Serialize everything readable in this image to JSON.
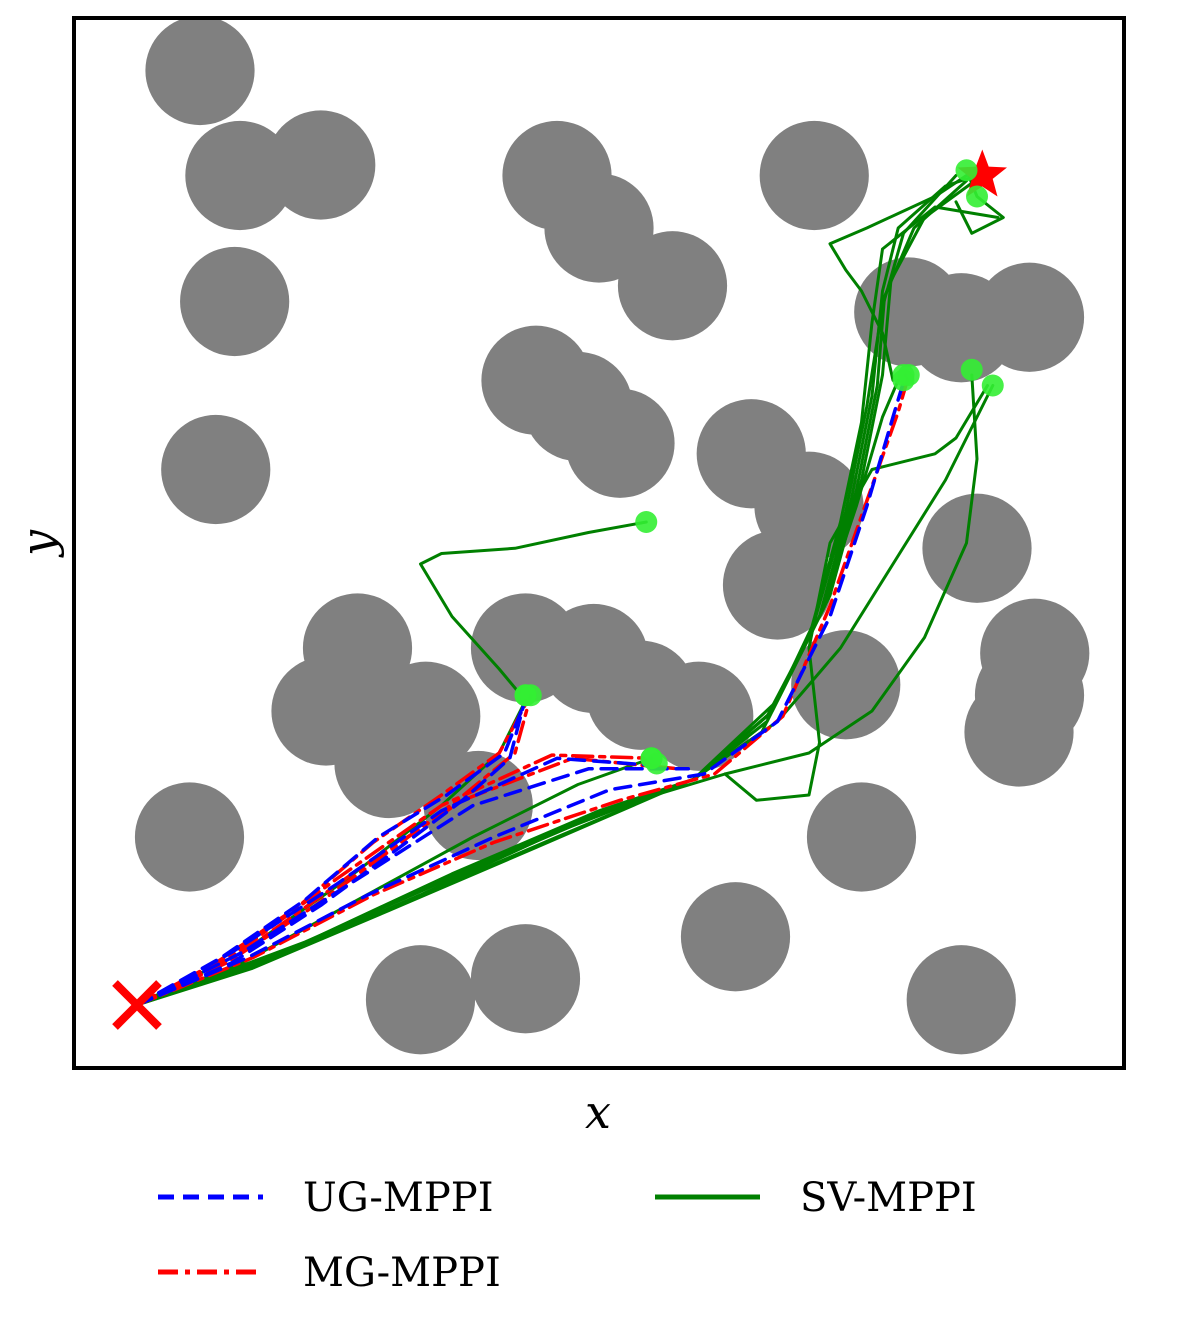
{
  "chart_data": {
    "type": "scatter",
    "title": "",
    "xlabel": "x",
    "ylabel": "y",
    "xlim": [
      0,
      10
    ],
    "ylim": [
      0,
      10
    ],
    "grid": false,
    "legend_position": "bottom",
    "colors": {
      "obstacle": "#808080",
      "UG-MPPI": "#0000ff",
      "MG-MPPI": "#ff0000",
      "SV-MPPI": "#008000",
      "endpoint": "#33ee33",
      "start_goal": "#ff0000"
    },
    "start": [
      0.6,
      0.6
    ],
    "goal": [
      8.65,
      8.5
    ],
    "obstacles": [
      [
        1.2,
        9.5
      ],
      [
        1.58,
        8.5
      ],
      [
        2.35,
        8.6
      ],
      [
        1.53,
        7.3
      ],
      [
        1.35,
        5.7
      ],
      [
        4.6,
        8.5
      ],
      [
        5.0,
        8.0
      ],
      [
        5.7,
        7.45
      ],
      [
        4.4,
        6.55
      ],
      [
        4.8,
        6.3
      ],
      [
        5.2,
        5.95
      ],
      [
        7.05,
        8.5
      ],
      [
        6.45,
        5.85
      ],
      [
        7.0,
        5.35
      ],
      [
        6.7,
        4.6
      ],
      [
        7.95,
        7.2
      ],
      [
        8.45,
        7.05
      ],
      [
        9.1,
        7.15
      ],
      [
        8.6,
        4.95
      ],
      [
        9.15,
        3.95
      ],
      [
        9.1,
        3.55
      ],
      [
        9.0,
        3.2
      ],
      [
        2.7,
        4.0
      ],
      [
        2.4,
        3.4
      ],
      [
        3.35,
        3.35
      ],
      [
        3.0,
        2.9
      ],
      [
        3.85,
        2.5
      ],
      [
        4.3,
        4.0
      ],
      [
        4.95,
        3.9
      ],
      [
        5.4,
        3.55
      ],
      [
        5.95,
        3.35
      ],
      [
        7.35,
        3.65
      ],
      [
        7.5,
        2.2
      ],
      [
        6.3,
        1.25
      ],
      [
        4.3,
        0.85
      ],
      [
        3.3,
        0.65
      ],
      [
        1.1,
        2.2
      ],
      [
        8.45,
        0.65
      ]
    ],
    "obstacle_radius": 0.52,
    "series": [
      {
        "name": "UG-MPPI",
        "style": "dashed",
        "endpoints": [
          [
            4.3,
            3.55
          ],
          [
            5.55,
            2.9
          ],
          [
            7.9,
            6.55
          ]
        ],
        "paths": [
          [
            [
              0.6,
              0.6
            ],
            [
              1.4,
              1.05
            ],
            [
              2.2,
              1.6
            ],
            [
              2.9,
              2.2
            ],
            [
              3.55,
              2.6
            ],
            [
              4.1,
              3.0
            ],
            [
              4.3,
              3.5
            ]
          ],
          [
            [
              0.6,
              0.6
            ],
            [
              1.5,
              1.0
            ],
            [
              2.35,
              1.55
            ],
            [
              3.1,
              2.1
            ],
            [
              3.7,
              2.55
            ],
            [
              4.15,
              2.95
            ],
            [
              4.28,
              3.45
            ]
          ],
          [
            [
              0.6,
              0.6
            ],
            [
              1.5,
              1.1
            ],
            [
              2.5,
              1.75
            ],
            [
              3.5,
              2.45
            ],
            [
              4.6,
              2.95
            ],
            [
              5.55,
              2.88
            ]
          ],
          [
            [
              0.6,
              0.6
            ],
            [
              1.6,
              1.1
            ],
            [
              2.7,
              1.8
            ],
            [
              3.8,
              2.5
            ],
            [
              4.9,
              2.85
            ],
            [
              5.85,
              2.85
            ]
          ],
          [
            [
              0.6,
              0.6
            ],
            [
              1.65,
              1.05
            ],
            [
              2.8,
              1.65
            ],
            [
              4.0,
              2.2
            ],
            [
              5.1,
              2.65
            ],
            [
              6.0,
              2.8
            ],
            [
              6.7,
              3.3
            ],
            [
              7.2,
              4.3
            ],
            [
              7.55,
              5.35
            ],
            [
              7.8,
              6.2
            ],
            [
              7.92,
              6.6
            ]
          ]
        ]
      },
      {
        "name": "MG-MPPI",
        "style": "dashdot",
        "endpoints": [
          [
            4.35,
            3.55
          ],
          [
            5.5,
            2.95
          ],
          [
            7.95,
            6.6
          ]
        ],
        "paths": [
          [
            [
              0.6,
              0.6
            ],
            [
              1.35,
              1.0
            ],
            [
              2.15,
              1.55
            ],
            [
              2.85,
              2.15
            ],
            [
              3.5,
              2.6
            ],
            [
              4.05,
              3.0
            ],
            [
              4.32,
              3.5
            ]
          ],
          [
            [
              0.6,
              0.6
            ],
            [
              1.45,
              1.0
            ],
            [
              2.3,
              1.55
            ],
            [
              3.05,
              2.1
            ],
            [
              3.65,
              2.55
            ],
            [
              4.2,
              3.0
            ],
            [
              4.35,
              3.55
            ]
          ],
          [
            [
              0.6,
              0.6
            ],
            [
              1.55,
              1.1
            ],
            [
              2.5,
              1.8
            ],
            [
              3.5,
              2.5
            ],
            [
              4.55,
              2.98
            ],
            [
              5.5,
              2.95
            ]
          ],
          [
            [
              0.6,
              0.6
            ],
            [
              1.6,
              1.1
            ],
            [
              2.65,
              1.85
            ],
            [
              3.7,
              2.55
            ],
            [
              4.75,
              2.95
            ],
            [
              5.75,
              2.85
            ]
          ],
          [
            [
              0.6,
              0.6
            ],
            [
              1.7,
              1.05
            ],
            [
              2.85,
              1.65
            ],
            [
              4.0,
              2.15
            ],
            [
              5.2,
              2.55
            ],
            [
              6.1,
              2.8
            ],
            [
              6.75,
              3.35
            ],
            [
              7.2,
              4.4
            ],
            [
              7.55,
              5.4
            ],
            [
              7.85,
              6.25
            ],
            [
              7.95,
              6.6
            ]
          ]
        ]
      },
      {
        "name": "SV-MPPI",
        "style": "solid",
        "endpoints": [
          [
            4.3,
            3.55
          ],
          [
            5.5,
            2.95
          ],
          [
            5.45,
            5.2
          ],
          [
            7.9,
            6.6
          ],
          [
            8.55,
            6.65
          ],
          [
            8.75,
            6.5
          ],
          [
            8.5,
            8.55
          ],
          [
            8.6,
            8.3
          ]
        ],
        "paths": [
          [
            [
              0.6,
              0.6
            ],
            [
              1.8,
              1.0
            ],
            [
              3.2,
              1.6
            ],
            [
              4.6,
              2.2
            ],
            [
              5.9,
              2.75
            ],
            [
              6.6,
              3.3
            ],
            [
              7.1,
              4.3
            ],
            [
              7.4,
              5.4
            ],
            [
              7.6,
              6.4
            ],
            [
              7.7,
              7.4
            ],
            [
              7.85,
              8.0
            ],
            [
              8.3,
              8.4
            ],
            [
              8.6,
              8.5
            ]
          ],
          [
            [
              0.6,
              0.6
            ],
            [
              1.9,
              1.05
            ],
            [
              3.3,
              1.7
            ],
            [
              4.7,
              2.3
            ],
            [
              5.9,
              2.75
            ],
            [
              6.65,
              3.4
            ],
            [
              7.15,
              4.4
            ],
            [
              7.45,
              5.5
            ],
            [
              7.65,
              6.5
            ],
            [
              7.72,
              7.35
            ],
            [
              8.0,
              8.0
            ],
            [
              8.5,
              8.45
            ]
          ],
          [
            [
              0.6,
              0.6
            ],
            [
              2.0,
              1.1
            ],
            [
              3.5,
              1.8
            ],
            [
              4.8,
              2.35
            ],
            [
              5.9,
              2.75
            ],
            [
              6.6,
              3.3
            ],
            [
              7.05,
              4.25
            ],
            [
              7.35,
              5.3
            ],
            [
              7.55,
              6.3
            ],
            [
              7.7,
              7.25
            ],
            [
              7.9,
              7.95
            ],
            [
              8.4,
              8.5
            ]
          ],
          [
            [
              0.6,
              0.6
            ],
            [
              1.7,
              0.95
            ],
            [
              3.0,
              1.5
            ],
            [
              4.4,
              2.1
            ],
            [
              5.9,
              2.75
            ],
            [
              6.7,
              3.5
            ],
            [
              7.2,
              4.5
            ],
            [
              7.5,
              5.6
            ],
            [
              7.7,
              6.6
            ],
            [
              7.78,
              7.5
            ],
            [
              8.1,
              8.1
            ],
            [
              8.65,
              8.5
            ]
          ],
          [
            [
              0.6,
              0.6
            ],
            [
              2.1,
              1.15
            ],
            [
              3.6,
              1.85
            ],
            [
              5.0,
              2.45
            ],
            [
              5.9,
              2.75
            ],
            [
              6.55,
              3.2
            ],
            [
              7.0,
              4.1
            ],
            [
              7.3,
              5.2
            ],
            [
              7.5,
              6.15
            ],
            [
              7.6,
              7.1
            ],
            [
              7.7,
              7.8
            ],
            [
              8.2,
              8.2
            ],
            [
              8.8,
              8.1
            ]
          ],
          [
            [
              0.6,
              0.6
            ],
            [
              1.9,
              1.05
            ],
            [
              3.3,
              1.65
            ],
            [
              4.6,
              2.25
            ],
            [
              5.9,
              2.75
            ],
            [
              6.6,
              3.35
            ],
            [
              7.1,
              4.3
            ],
            [
              7.45,
              5.35
            ],
            [
              7.7,
              6.2
            ],
            [
              7.85,
              6.55
            ]
          ],
          [
            [
              0.6,
              0.6
            ],
            [
              2.0,
              1.1
            ],
            [
              3.4,
              1.75
            ],
            [
              4.8,
              2.35
            ],
            [
              5.9,
              2.75
            ],
            [
              6.7,
              3.3
            ],
            [
              7.3,
              4.0
            ],
            [
              7.8,
              4.8
            ],
            [
              8.3,
              5.6
            ],
            [
              8.7,
              6.4
            ],
            [
              8.75,
              6.5
            ]
          ],
          [
            [
              0.6,
              0.6
            ],
            [
              2.2,
              1.2
            ],
            [
              3.8,
              1.9
            ],
            [
              5.2,
              2.5
            ],
            [
              6.2,
              2.8
            ],
            [
              7.0,
              3.0
            ],
            [
              7.6,
              3.4
            ],
            [
              8.1,
              4.1
            ],
            [
              8.5,
              5.0
            ],
            [
              8.6,
              5.8
            ],
            [
              8.55,
              6.6
            ]
          ],
          [
            [
              0.6,
              0.6
            ],
            [
              1.6,
              1.1
            ],
            [
              2.6,
              1.8
            ],
            [
              3.5,
              2.5
            ],
            [
              4.05,
              3.0
            ],
            [
              4.3,
              3.5
            ]
          ],
          [
            [
              4.3,
              3.5
            ],
            [
              4.05,
              3.8
            ],
            [
              3.6,
              4.3
            ],
            [
              3.3,
              4.8
            ],
            [
              3.5,
              4.9
            ],
            [
              4.2,
              4.95
            ],
            [
              4.9,
              5.1
            ],
            [
              5.45,
              5.2
            ]
          ],
          [
            [
              0.6,
              0.6
            ],
            [
              1.6,
              1.0
            ],
            [
              2.7,
              1.6
            ],
            [
              3.8,
              2.2
            ],
            [
              4.8,
              2.7
            ],
            [
              5.5,
              2.95
            ]
          ],
          [
            [
              6.2,
              2.8
            ],
            [
              6.5,
              2.55
            ],
            [
              7.0,
              2.6
            ],
            [
              7.1,
              3.1
            ],
            [
              7.0,
              4.0
            ],
            [
              7.2,
              5.0
            ],
            [
              7.6,
              5.7
            ],
            [
              8.2,
              5.85
            ],
            [
              8.4,
              6.0
            ],
            [
              8.7,
              6.5
            ]
          ],
          [
            [
              7.8,
              6.55
            ],
            [
              7.7,
              7.0
            ],
            [
              7.5,
              7.4
            ],
            [
              7.35,
              7.6
            ],
            [
              7.2,
              7.85
            ],
            [
              7.55,
              8.0
            ],
            [
              8.2,
              8.3
            ],
            [
              8.5,
              8.5
            ]
          ],
          [
            [
              8.5,
              8.55
            ],
            [
              8.6,
              8.3
            ],
            [
              8.85,
              8.1
            ],
            [
              8.55,
              7.95
            ],
            [
              8.4,
              8.25
            ]
          ]
        ]
      }
    ]
  }
}
